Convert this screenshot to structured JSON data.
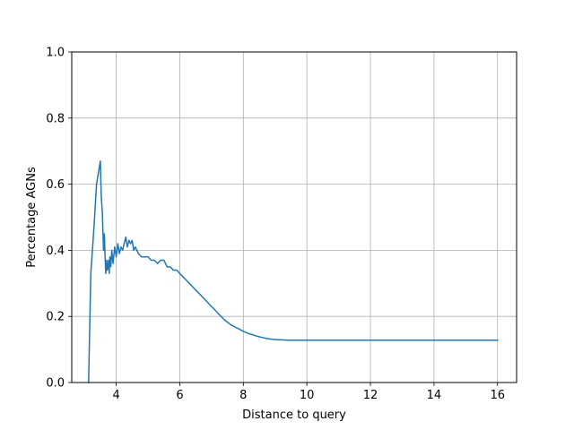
{
  "chart_data": {
    "type": "line",
    "title": "",
    "xlabel": "Distance to query",
    "ylabel": "Percentage AGNs",
    "xlim": [
      2.6,
      16.6
    ],
    "ylim": [
      0.0,
      1.0
    ],
    "xticks": [
      4,
      6,
      8,
      10,
      12,
      14,
      16
    ],
    "xtick_labels": [
      "4",
      "6",
      "8",
      "10",
      "12",
      "14",
      "16"
    ],
    "yticks": [
      0.0,
      0.2,
      0.4,
      0.6,
      0.8,
      1.0
    ],
    "ytick_labels": [
      "0.0",
      "0.2",
      "0.4",
      "0.6",
      "0.8",
      "1.0"
    ],
    "grid": true,
    "line_color": "#1f77b4",
    "series": [
      {
        "x": [
          3.13,
          3.2,
          3.25,
          3.3,
          3.38,
          3.45,
          3.5,
          3.53,
          3.56,
          3.58,
          3.6,
          3.62,
          3.63,
          3.65,
          3.67,
          3.7,
          3.72,
          3.74,
          3.76,
          3.78,
          3.8,
          3.83,
          3.86,
          3.9,
          3.95,
          4.0,
          4.05,
          4.1,
          4.15,
          4.2,
          4.25,
          4.3,
          4.35,
          4.4,
          4.45,
          4.5,
          4.55,
          4.6,
          4.7,
          4.8,
          4.9,
          5.0,
          5.1,
          5.2,
          5.3,
          5.4,
          5.5,
          5.6,
          5.7,
          5.8,
          5.9,
          6.0,
          6.1,
          6.2,
          6.3,
          6.4,
          6.5,
          6.6,
          6.8,
          7.0,
          7.2,
          7.4,
          7.6,
          7.8,
          8.0,
          8.2,
          8.4,
          8.6,
          8.8,
          9.0,
          9.2,
          9.4,
          9.6,
          9.8,
          10.0,
          10.5,
          11.0,
          12.0,
          13.0,
          14.0,
          15.0,
          16.0
        ],
        "values": [
          0.0,
          0.33,
          0.4,
          0.47,
          0.6,
          0.64,
          0.67,
          0.56,
          0.52,
          0.46,
          0.4,
          0.45,
          0.44,
          0.38,
          0.33,
          0.37,
          0.34,
          0.35,
          0.37,
          0.33,
          0.38,
          0.35,
          0.4,
          0.36,
          0.41,
          0.38,
          0.42,
          0.39,
          0.41,
          0.4,
          0.42,
          0.44,
          0.41,
          0.43,
          0.42,
          0.43,
          0.4,
          0.41,
          0.39,
          0.38,
          0.38,
          0.38,
          0.37,
          0.37,
          0.36,
          0.37,
          0.37,
          0.35,
          0.35,
          0.34,
          0.34,
          0.33,
          0.32,
          0.31,
          0.3,
          0.29,
          0.28,
          0.27,
          0.25,
          0.23,
          0.21,
          0.19,
          0.175,
          0.165,
          0.155,
          0.147,
          0.141,
          0.136,
          0.132,
          0.13,
          0.129,
          0.128,
          0.128,
          0.128,
          0.128,
          0.128,
          0.128,
          0.128,
          0.128,
          0.128,
          0.128,
          0.128
        ]
      }
    ]
  }
}
